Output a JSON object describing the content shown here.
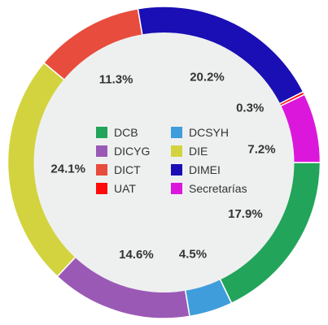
{
  "chart_data": {
    "type": "pie",
    "variant": "donut",
    "title": "",
    "slices": [
      {
        "name": "DCB",
        "value": 17.9,
        "label": "17.9%",
        "color": "#22a45a"
      },
      {
        "name": "DCSYH",
        "value": 4.5,
        "label": "4.5%",
        "color": "#3f9ddc"
      },
      {
        "name": "DICYG",
        "value": 14.6,
        "label": "14.6%",
        "color": "#9b59b6"
      },
      {
        "name": "DIE",
        "value": 24.1,
        "label": "24.1%",
        "color": "#d3d33f"
      },
      {
        "name": "DICT",
        "value": 11.3,
        "label": "11.3%",
        "color": "#e74c3c"
      },
      {
        "name": "DIMEI",
        "value": 20.2,
        "label": "20.2%",
        "color": "#1a0fb4"
      },
      {
        "name": "UAT",
        "value": 0.3,
        "label": "0.3%",
        "color": "#ff0a0a"
      },
      {
        "name": "Secretarías",
        "value": 7.2,
        "label": "7.2%",
        "color": "#dc17dc"
      }
    ],
    "legend": {
      "placement": "center",
      "columns": [
        [
          "DCB",
          "DICYG",
          "DICT",
          "UAT"
        ],
        [
          "DCSYH",
          "DIE",
          "DIMEI",
          "Secretarías"
        ]
      ]
    },
    "center_fill": "#eef0f0"
  }
}
